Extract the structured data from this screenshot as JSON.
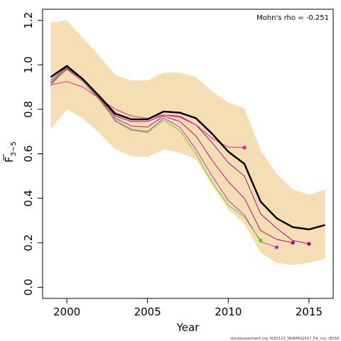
{
  "chart_data": {
    "type": "line",
    "xlabel": "Year",
    "ylabel_base": "F",
    "ylabel_sub": "3−5",
    "xlim": [
      1998.5,
      2016.5
    ],
    "ylim": [
      -0.05,
      1.25
    ],
    "xticks": [
      2000,
      2005,
      2010,
      2015
    ],
    "yticks": [
      0.0,
      0.2,
      0.4,
      0.6,
      0.8,
      1.0,
      1.2
    ],
    "ytick_labels": [
      "0.0",
      "0.2",
      "0.4",
      "0.6",
      "0.8",
      "1.0",
      "1.2"
    ],
    "annotation": "Mohn's rho = -0.251",
    "footer": "stockassessment.org,  PLE2123_WGBFAS2017_Fst_run, r8256",
    "colors": {
      "band": "#f5deb3",
      "main": "#000000",
      "peels": [
        "#8b008b",
        "#b0006c",
        "#9932cc",
        "#66cc00",
        "#ff1493",
        "#ff0000"
      ]
    },
    "band": {
      "x": [
        1999,
        2000,
        2001,
        2002,
        2003,
        2004,
        2005,
        2006,
        2007,
        2008,
        2009,
        2010,
        2011,
        2012,
        2013,
        2014,
        2015,
        2016
      ],
      "upper": [
        1.19,
        1.2,
        1.12,
        1.04,
        0.955,
        0.93,
        0.93,
        0.965,
        0.965,
        0.945,
        0.88,
        0.83,
        0.805,
        0.615,
        0.51,
        0.44,
        0.415,
        0.44
      ],
      "lower": [
        0.71,
        0.8,
        0.76,
        0.695,
        0.62,
        0.59,
        0.585,
        0.62,
        0.605,
        0.575,
        0.46,
        0.35,
        0.285,
        0.155,
        0.11,
        0.1,
        0.11,
        0.13
      ]
    },
    "series": [
      {
        "x": [
          1999,
          2000,
          2001,
          2002,
          2003,
          2004,
          2005,
          2006,
          2007,
          2008,
          2009,
          2010,
          2011,
          2012,
          2013,
          2014,
          2015,
          2016
        ],
        "values": [
          0.945,
          0.995,
          0.935,
          0.86,
          0.78,
          0.755,
          0.755,
          0.79,
          0.785,
          0.76,
          0.69,
          0.61,
          0.555,
          0.385,
          0.31,
          0.27,
          0.26,
          0.28
        ],
        "terminal_point": false
      },
      {
        "x": [
          1999,
          2000,
          2001,
          2002,
          2003,
          2004,
          2005,
          2006,
          2007,
          2008,
          2009,
          2010,
          2011,
          2012,
          2013,
          2014,
          2015
        ],
        "values": [
          0.93,
          0.99,
          0.93,
          0.855,
          0.77,
          0.745,
          0.745,
          0.775,
          0.765,
          0.73,
          0.65,
          0.56,
          0.5,
          0.33,
          0.265,
          0.21,
          0.195
        ],
        "terminal_point": true
      },
      {
        "x": [
          1999,
          2000,
          2001,
          2002,
          2003,
          2004,
          2005,
          2006,
          2007,
          2008,
          2009,
          2010,
          2011,
          2012,
          2013,
          2014
        ],
        "values": [
          0.92,
          0.985,
          0.93,
          0.85,
          0.76,
          0.725,
          0.72,
          0.77,
          0.745,
          0.68,
          0.57,
          0.475,
          0.4,
          0.255,
          0.215,
          0.2
        ],
        "terminal_point": true
      },
      {
        "x": [
          1999,
          2000,
          2001,
          2002,
          2003,
          2004,
          2005,
          2006,
          2007,
          2008,
          2009,
          2010,
          2011,
          2012,
          2013
        ],
        "values": [
          0.915,
          0.98,
          0.925,
          0.845,
          0.75,
          0.71,
          0.7,
          0.76,
          0.72,
          0.62,
          0.5,
          0.39,
          0.325,
          0.205,
          0.18
        ],
        "terminal_point": true
      },
      {
        "x": [
          1999,
          2000,
          2001,
          2002,
          2003,
          2004,
          2005,
          2006,
          2007,
          2008,
          2009,
          2010,
          2011,
          2012
        ],
        "values": [
          0.905,
          0.99,
          0.93,
          0.85,
          0.745,
          0.705,
          0.695,
          0.75,
          0.705,
          0.6,
          0.47,
          0.37,
          0.315,
          0.21
        ],
        "terminal_point": true
      },
      {
        "x": [
          1999,
          2000,
          2001,
          2002,
          2003,
          2004,
          2005,
          2006,
          2007,
          2008,
          2009,
          2010,
          2011
        ],
        "values": [
          0.91,
          0.925,
          0.9,
          0.85,
          0.8,
          0.77,
          0.76,
          0.775,
          0.77,
          0.73,
          0.67,
          0.63,
          0.628
        ],
        "terminal_point": true
      }
    ]
  }
}
